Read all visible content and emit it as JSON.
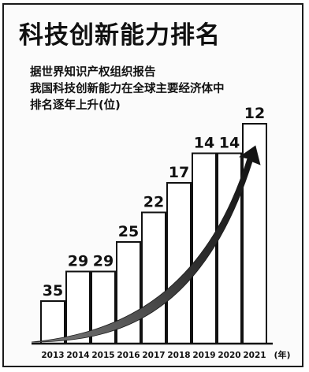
{
  "title": "科技创新能力排名",
  "subtitle_lines": [
    "据世界知识产权组织报告",
    "我国科技创新能力在全球主要经济体中",
    "排名逐年上升(位)"
  ],
  "x_unit": "(年)",
  "chart_data": {
    "type": "bar",
    "title": "科技创新能力排名",
    "subtitle": "据世界知识产权组织报告 我国科技创新能力在全球主要经济体中 排名逐年上升(位)",
    "xlabel": "(年)",
    "ylabel": "",
    "categories": [
      "2013",
      "2014",
      "2015",
      "2016",
      "2017",
      "2018",
      "2019",
      "2020",
      "2021"
    ],
    "values": [
      35,
      29,
      29,
      25,
      22,
      17,
      14,
      14,
      12
    ],
    "bar_heights_rank_index": [
      1,
      2,
      2,
      3,
      4,
      5,
      6,
      6,
      7
    ],
    "grid": false,
    "legend": "none",
    "colors": {
      "bar_fill": "#ffffff",
      "bar_stroke": "#111111",
      "arrow": "#1c1c1c",
      "text": "#111111"
    }
  }
}
